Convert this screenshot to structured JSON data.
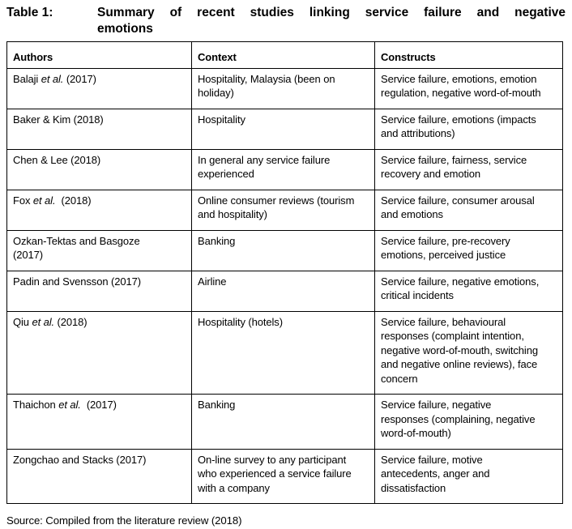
{
  "caption": {
    "label": "Table 1:",
    "lines": [
      "Summary of recent studies linking service failure and negative",
      "emotions"
    ]
  },
  "table": {
    "headers": [
      "Authors",
      "Context",
      "Constructs"
    ],
    "rows": [
      {
        "author": [
          {
            "text": "Balaji ",
            "italic": false
          },
          {
            "text": "et al.",
            "italic": true
          },
          {
            "text": " (2017)",
            "italic": false
          }
        ],
        "context": "Hospitality, Malaysia (been on\nholiday)",
        "constructs": "Service failure, emotions, emotion\nregulation, negative word-of-mouth"
      },
      {
        "author": [
          {
            "text": "Baker & Kim (2018)",
            "italic": false
          }
        ],
        "context": "Hospitality",
        "constructs": "Service failure, emotions (impacts\nand attributions)"
      },
      {
        "author": [
          {
            "text": "Chen & Lee (2018)",
            "italic": false
          }
        ],
        "context": "In general any service failure\nexperienced",
        "constructs": "Service failure, fairness, service\nrecovery and emotion"
      },
      {
        "author": [
          {
            "text": "Fox ",
            "italic": false
          },
          {
            "text": "et al.",
            "italic": true
          },
          {
            "text": "  (2018)",
            "italic": false
          }
        ],
        "context": "Online consumer reviews (tourism\nand hospitality)",
        "constructs": "Service failure, consumer arousal\nand emotions"
      },
      {
        "author": [
          {
            "text": "Ozkan-Tektas and Basgoze\n(2017)",
            "italic": false
          }
        ],
        "context": "Banking",
        "constructs": "Service failure, pre-recovery\nemotions, perceived justice"
      },
      {
        "author": [
          {
            "text": "Padin and Svensson (2017)",
            "italic": false
          }
        ],
        "context": "Airline",
        "constructs": "Service failure, negative emotions,\ncritical incidents"
      },
      {
        "author": [
          {
            "text": "Qiu ",
            "italic": false
          },
          {
            "text": "et al.",
            "italic": true
          },
          {
            "text": " (2018)",
            "italic": false
          }
        ],
        "context": "Hospitality (hotels)",
        "constructs": "Service failure, behavioural\nresponses (complaint intention,\nnegative word-of-mouth, switching\nand negative online reviews), face\nconcern"
      },
      {
        "author": [
          {
            "text": "Thaichon ",
            "italic": false
          },
          {
            "text": "et al.",
            "italic": true
          },
          {
            "text": "  (2017)",
            "italic": false
          }
        ],
        "context": "Banking",
        "constructs": "Service failure, negative\nresponses (complaining, negative\nword-of-mouth)"
      },
      {
        "author": [
          {
            "text": "Zongchao and Stacks (2017)",
            "italic": false
          }
        ],
        "context": "On-line survey to any participant\nwho experienced a service failure\nwith a company",
        "constructs": "Service failure, motive\nantecedents, anger and\ndissatisfaction"
      }
    ]
  },
  "source_note": "Source: Compiled from the literature review (2018)"
}
